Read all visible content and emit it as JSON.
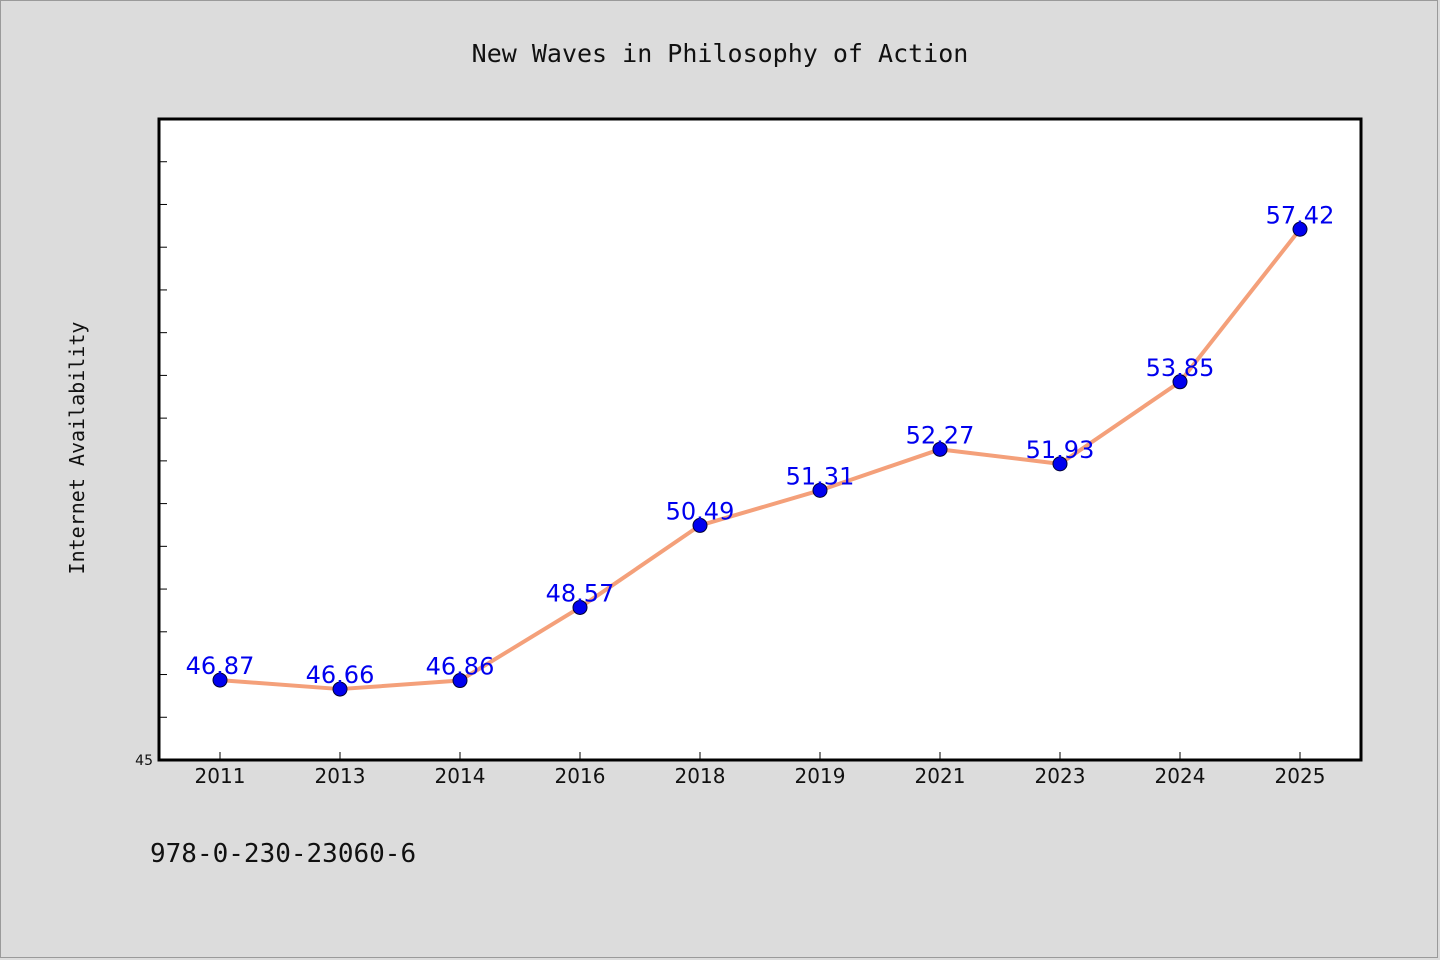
{
  "chart_data": {
    "type": "line",
    "title": "New Waves in Philosophy of Action",
    "xlabel": "",
    "ylabel": "Internet Availability",
    "categories": [
      "2011",
      "2013",
      "2014",
      "2016",
      "2018",
      "2019",
      "2021",
      "2023",
      "2024",
      "2025"
    ],
    "series": [
      {
        "values": [
          46.87,
          46.66,
          46.86,
          48.57,
          50.49,
          51.31,
          52.27,
          51.93,
          53.85,
          57.42
        ],
        "labels": [
          "46.87",
          "46.66",
          "46.86",
          "48.57",
          "50.49",
          "51.31",
          "52.27",
          "51.93",
          "53.85",
          "57.42"
        ],
        "line_color": "#f4a07a",
        "marker_color": "#0000ee"
      }
    ],
    "ylim": [
      45,
      60
    ],
    "yticks_labeled": [
      "45"
    ],
    "grid": false,
    "legend": "none"
  },
  "footer": {
    "isbn": "978-0-230-23060-6"
  },
  "colors": {
    "background": "#dcdcdc",
    "plot_area": "#ffffff",
    "line": "#f4a07a",
    "marker": "#0000ee",
    "label": "#0000ee"
  }
}
